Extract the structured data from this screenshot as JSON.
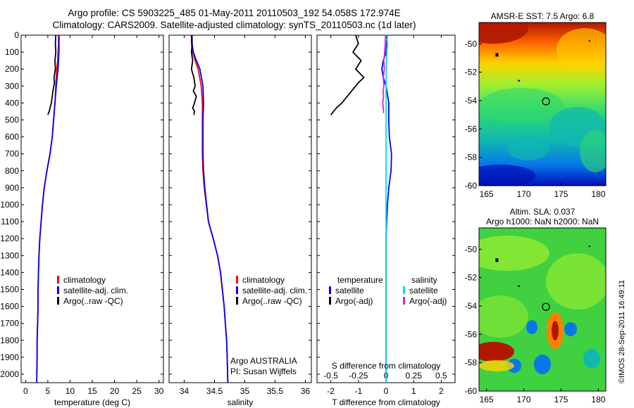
{
  "header": {
    "title1": "Argo profile: CS 5903225_485 01-May-2011 20110503_192 54.058S 172.974E",
    "title2": "Climatology: CARS2009. Satellite-adjusted climatology: synTS_20110503.nc (1d later)"
  },
  "chart_data": [
    {
      "type": "line",
      "xlabel": "temperature (deg C)",
      "xlim": [
        -1,
        31
      ],
      "ylim": [
        0,
        2050
      ],
      "x_ticks": [
        0,
        5,
        10,
        15,
        20,
        25,
        30
      ],
      "y_ticks": [
        0,
        100,
        200,
        300,
        400,
        500,
        600,
        700,
        800,
        900,
        1000,
        1100,
        1200,
        1300,
        1400,
        1500,
        1600,
        1700,
        1800,
        1900,
        2000
      ],
      "y_reversed": true,
      "legend": [
        "climatology",
        "satellite-adj. clim.",
        "Argo(..raw -QC)"
      ],
      "legend_placement": "lower-center",
      "series": [
        {
          "name": "climatology",
          "color": "#ff0000",
          "x": [
            7.4,
            7.4,
            7.3,
            7.2,
            7.0,
            6.8,
            6.6,
            6.3,
            6.0,
            5.5,
            4.8,
            4.2,
            3.8,
            3.5,
            3.2,
            3.0,
            2.9,
            2.8,
            2.8,
            2.7,
            2.6,
            2.6,
            2.5
          ],
          "y": [
            0,
            50,
            100,
            150,
            200,
            300,
            400,
            500,
            600,
            700,
            800,
            900,
            1000,
            1100,
            1200,
            1300,
            1400,
            1500,
            1600,
            1700,
            1800,
            1900,
            2000
          ]
        },
        {
          "name": "satellite-adj. clim.",
          "color": "#0000ff",
          "x": [
            7.5,
            7.5,
            7.5,
            7.4,
            7.3,
            7.1,
            6.9,
            6.6,
            6.3,
            6.0,
            5.5,
            4.8,
            4.2,
            3.8,
            3.5,
            3.2,
            3.0,
            2.9,
            2.8,
            2.8,
            2.7,
            2.6,
            2.6,
            2.5
          ],
          "y": [
            0,
            50,
            100,
            150,
            200,
            250,
            300,
            400,
            500,
            600,
            700,
            800,
            900,
            1000,
            1100,
            1200,
            1300,
            1400,
            1500,
            1600,
            1700,
            1800,
            1900,
            2050
          ]
        },
        {
          "name": "Argo(..raw -QC)",
          "color": "#000000",
          "x": [
            6.8,
            6.7,
            6.8,
            6.6,
            6.7,
            6.4,
            6.5,
            6.2,
            6.0,
            5.8,
            5.5,
            5.3,
            5.0
          ],
          "y": [
            0,
            50,
            100,
            150,
            200,
            250,
            280,
            320,
            360,
            400,
            430,
            450,
            470
          ]
        }
      ]
    },
    {
      "type": "line",
      "xlabel": "salinity",
      "xlim": [
        33.75,
        36.1
      ],
      "ylim": [
        0,
        2050
      ],
      "x_ticks": [
        34,
        34.5,
        35,
        35.5,
        36
      ],
      "y_reversed": true,
      "legend": [
        "climatology",
        "satellite-adj. clim.",
        "Argo(..raw -QC)"
      ],
      "legend_placement": "lower-right",
      "annotations": [
        "Argo AUSTRALIA",
        "PI: Susan Wijffels"
      ],
      "series": [
        {
          "name": "climatology",
          "color": "#ff0000",
          "x": [
            34.12,
            34.12,
            34.14,
            34.18,
            34.23,
            34.28,
            34.3,
            34.3,
            34.3,
            34.3,
            34.31,
            34.33,
            34.4,
            34.48,
            34.55,
            34.6,
            34.63,
            34.66,
            34.68,
            34.7,
            34.71,
            34.72
          ],
          "y": [
            0,
            50,
            100,
            150,
            200,
            300,
            400,
            500,
            600,
            700,
            800,
            900,
            1100,
            1200,
            1300,
            1400,
            1500,
            1600,
            1700,
            1800,
            1900,
            2050
          ]
        },
        {
          "name": "satellite-adj. clim.",
          "color": "#0000ff",
          "x": [
            34.13,
            34.13,
            34.15,
            34.2,
            34.26,
            34.31,
            34.32,
            34.31,
            34.31,
            34.31,
            34.32,
            34.34,
            34.4,
            34.48,
            34.55,
            34.6,
            34.63,
            34.66,
            34.68,
            34.7,
            34.71,
            34.72
          ],
          "y": [
            0,
            50,
            100,
            150,
            200,
            300,
            400,
            500,
            600,
            700,
            800,
            900,
            1100,
            1200,
            1300,
            1400,
            1500,
            1600,
            1700,
            1800,
            1900,
            2050
          ]
        },
        {
          "name": "Argo(..raw -QC)",
          "color": "#000000",
          "x": [
            34.12,
            34.13,
            34.12,
            34.14,
            34.12,
            34.16,
            34.18,
            34.15,
            34.2,
            34.17,
            34.14,
            34.17,
            34.16
          ],
          "y": [
            0,
            50,
            100,
            150,
            200,
            250,
            300,
            330,
            360,
            400,
            430,
            450,
            470
          ]
        }
      ]
    },
    {
      "type": "line",
      "xlabel": "T difference from climatology",
      "x2label": "S difference from climatology",
      "xlim": [
        -2.5,
        2.5
      ],
      "x2lim": [
        -0.625,
        0.625
      ],
      "ylim": [
        0,
        2050
      ],
      "x_ticks": [
        -2,
        -1,
        0,
        1,
        2
      ],
      "x2_ticks": [
        -0.5,
        -0.25,
        0,
        0.25,
        0.5
      ],
      "x2_tick_labels": [
        "-0.5",
        "-0.25",
        "0",
        "0.25",
        "0.5"
      ],
      "y_reversed": true,
      "legend": [
        "temperature",
        "satellite",
        "Argo(-adj)",
        "salinity",
        "satellite",
        "Argo(-adj)"
      ],
      "legend_placement": "lower-center",
      "series": [
        {
          "name": "satellite",
          "color": "#0000ff",
          "x": [
            0.05,
            0.0,
            -0.1,
            -0.15,
            -0.1,
            0.0,
            0.1,
            0.1,
            0.12,
            0.2,
            0.18,
            0.1,
            0.05,
            0.02,
            0.0,
            0.0,
            0.0,
            0.0,
            0.0,
            0.0
          ],
          "y": [
            0,
            100,
            150,
            200,
            250,
            300,
            400,
            500,
            600,
            700,
            800,
            900,
            1000,
            1100,
            1200,
            1400,
            1600,
            1800,
            1900,
            2050
          ]
        },
        {
          "name": "satellite",
          "color": "#00e0e0",
          "x": [
            0.04,
            0.05,
            0.03,
            0.01,
            0.0,
            0.0,
            0.0,
            0.0,
            0.0,
            0.0,
            0.0,
            0.0
          ],
          "y": [
            0,
            50,
            100,
            200,
            300,
            500,
            800,
            1100,
            1400,
            1700,
            1900,
            2050
          ]
        },
        {
          "name": "Argo(-adj)",
          "color": "#000000",
          "x": [
            -1.1,
            -1.0,
            -1.2,
            -0.9,
            -1.1,
            -0.8,
            -1.0,
            -1.2,
            -1.4,
            -1.6,
            -1.8,
            -1.9,
            -2.0
          ],
          "y": [
            0,
            50,
            100,
            150,
            200,
            250,
            280,
            320,
            360,
            400,
            430,
            450,
            470
          ]
        },
        {
          "name": "Argo(-adj)",
          "color": "#e020e0",
          "x": [
            -0.02,
            -0.03,
            -0.05,
            -0.08,
            -0.06,
            -0.1,
            -0.08,
            -0.11,
            -0.09,
            -0.12,
            -0.1,
            -0.09
          ],
          "y": [
            0,
            50,
            100,
            150,
            200,
            250,
            300,
            330,
            360,
            400,
            430,
            460
          ]
        }
      ]
    },
    {
      "type": "heatmap",
      "title": "AMSR-E SST: 7.5 Argo: 6.8",
      "xlim": [
        164,
        181
      ],
      "ylim": [
        -60,
        -48.5
      ],
      "x_ticks": [
        165,
        170,
        175,
        180
      ],
      "y_ticks": [
        -50,
        -52,
        -54,
        -56,
        -58,
        -60
      ],
      "marker": {
        "lon": 172.974,
        "lat": -54.058
      }
    },
    {
      "type": "heatmap",
      "title": "Altim. SLA: 0.037",
      "subtitle": "Argo h1000: NaN h2000: NaN",
      "xlim": [
        164,
        181
      ],
      "ylim": [
        -60,
        -48.5
      ],
      "x_ticks": [
        165,
        170,
        175,
        180
      ],
      "y_ticks": [
        -50,
        -52,
        -54,
        -56,
        -58,
        -60
      ],
      "marker": {
        "lon": 172.974,
        "lat": -54.058
      }
    }
  ],
  "footer": {
    "stamp": "©IMOS 28-Sep-2011 16:49:11"
  }
}
